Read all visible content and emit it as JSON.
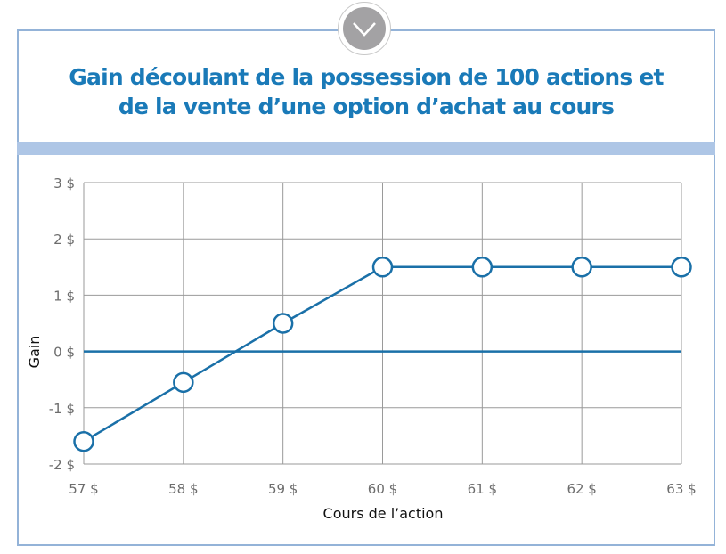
{
  "chart_data": {
    "type": "line",
    "title_line1": "Gain découlant de la possession de 100 actions et",
    "title_line2": "de la vente d’une option d’achat au cours",
    "xlabel": "Cours de l’action",
    "ylabel": "Gain",
    "x": [
      57,
      58,
      59,
      60,
      61,
      62,
      63
    ],
    "x_tick_labels": [
      "57 $",
      "58 $",
      "59 $",
      "60 $",
      "61 $",
      "62 $",
      "63 $"
    ],
    "y_ticks": [
      3,
      2,
      1,
      0,
      -1,
      -2
    ],
    "y_tick_labels": [
      "3 $",
      "2 $",
      "1 $",
      "0 $",
      "-1 $",
      "-2 $"
    ],
    "ylim": [
      -2,
      3
    ],
    "xlim": [
      57,
      63
    ],
    "grid": true,
    "series": [
      {
        "name": "Gain",
        "values": [
          -1.6,
          -0.55,
          0.5,
          1.5,
          1.5,
          1.5,
          1.5
        ]
      }
    ],
    "colors": {
      "line": "#1a70a8",
      "grid": "#9a9a9a",
      "title": "#1a7ab8"
    }
  },
  "badge_icon": "chevron-down-icon"
}
